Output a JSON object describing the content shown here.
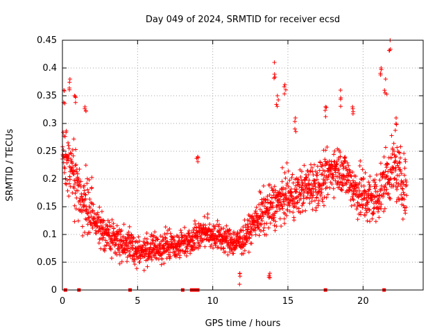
{
  "chart_data": {
    "type": "scatter",
    "title": "Day 049 of 2024, SRMTID for receiver ecsd",
    "xlabel": "GPS time / hours",
    "ylabel": "SRMTID / TECUs",
    "xlim": [
      0,
      24
    ],
    "ylim": [
      0,
      0.45
    ],
    "x_ticks": [
      "0",
      "5",
      "10",
      "15",
      "20"
    ],
    "x_tick_values": [
      0,
      5,
      10,
      15,
      20
    ],
    "y_ticks": [
      "0",
      "0.05",
      "0.1",
      "0.15",
      "0.2",
      "0.25",
      "0.3",
      "0.35",
      "0.4",
      "0.45"
    ],
    "y_tick_values": [
      0,
      0.05,
      0.1,
      0.15,
      0.2,
      0.25,
      0.3,
      0.35,
      0.4,
      0.45
    ],
    "grid": true,
    "marker": "+",
    "color": "#ff0000",
    "series": [
      {
        "name": "SRMTID",
        "trend": [
          [
            0.0,
            0.25
          ],
          [
            0.5,
            0.21
          ],
          [
            1.0,
            0.19
          ],
          [
            1.5,
            0.15
          ],
          [
            2.0,
            0.13
          ],
          [
            2.5,
            0.11
          ],
          [
            3.0,
            0.1
          ],
          [
            3.5,
            0.09
          ],
          [
            4.0,
            0.085
          ],
          [
            4.5,
            0.08
          ],
          [
            5.0,
            0.07
          ],
          [
            5.5,
            0.07
          ],
          [
            6.0,
            0.075
          ],
          [
            6.5,
            0.075
          ],
          [
            7.0,
            0.08
          ],
          [
            7.5,
            0.08
          ],
          [
            8.0,
            0.085
          ],
          [
            8.5,
            0.09
          ],
          [
            9.0,
            0.1
          ],
          [
            9.5,
            0.105
          ],
          [
            10.0,
            0.1
          ],
          [
            10.5,
            0.095
          ],
          [
            11.0,
            0.09
          ],
          [
            11.5,
            0.085
          ],
          [
            12.0,
            0.09
          ],
          [
            12.5,
            0.11
          ],
          [
            13.0,
            0.13
          ],
          [
            13.5,
            0.14
          ],
          [
            14.0,
            0.15
          ],
          [
            14.5,
            0.16
          ],
          [
            15.0,
            0.17
          ],
          [
            15.5,
            0.17
          ],
          [
            16.0,
            0.18
          ],
          [
            16.5,
            0.19
          ],
          [
            17.0,
            0.19
          ],
          [
            17.5,
            0.2
          ],
          [
            18.0,
            0.22
          ],
          [
            18.5,
            0.22
          ],
          [
            19.0,
            0.2
          ],
          [
            19.5,
            0.18
          ],
          [
            20.0,
            0.17
          ],
          [
            20.5,
            0.16
          ],
          [
            21.0,
            0.17
          ],
          [
            21.5,
            0.2
          ],
          [
            22.0,
            0.22
          ],
          [
            22.5,
            0.2
          ],
          [
            22.9,
            0.18
          ]
        ],
        "notable_points": [
          [
            0.1,
            0.36
          ],
          [
            0.5,
            0.38
          ],
          [
            0.8,
            0.35
          ],
          [
            1.5,
            0.33
          ],
          [
            9.0,
            0.24
          ],
          [
            14.1,
            0.41
          ],
          [
            14.3,
            0.35
          ],
          [
            14.8,
            0.37
          ],
          [
            15.5,
            0.31
          ],
          [
            17.5,
            0.33
          ],
          [
            18.5,
            0.36
          ],
          [
            19.3,
            0.33
          ],
          [
            21.2,
            0.4
          ],
          [
            21.5,
            0.38
          ],
          [
            21.8,
            0.45
          ],
          [
            22.2,
            0.31
          ],
          [
            11.8,
            0.03
          ],
          [
            13.8,
            0.03
          ]
        ],
        "gap_markers_at_zero": [
          0.2,
          1.1,
          4.5,
          8.0,
          8.6,
          8.8,
          9.0,
          17.5,
          21.4
        ]
      }
    ]
  }
}
